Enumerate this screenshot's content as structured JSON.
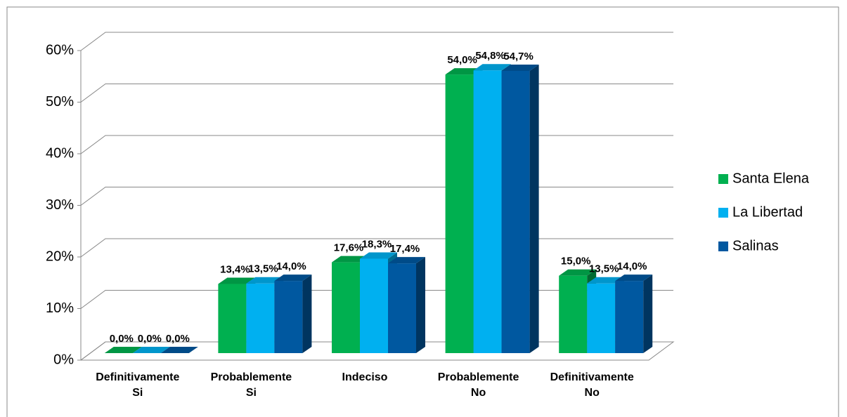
{
  "chart_data": {
    "type": "bar3d",
    "categories": [
      "Definitivamente Si",
      "Probablemente Si",
      "Indeciso",
      "Probablemente No",
      "Definitivamente No"
    ],
    "series": [
      {
        "name": "Santa Elena",
        "color": "#00b050",
        "values": [
          0,
          13.4,
          17.6,
          54.0,
          15.0
        ],
        "value_labels": [
          "0,0%",
          "13,4%",
          "17,6%",
          "54,0%",
          "15,0%"
        ]
      },
      {
        "name": "La Libertad",
        "color": "#00b0f0",
        "values": [
          0,
          13.5,
          18.3,
          54.8,
          13.5
        ],
        "value_labels": [
          "0,0%",
          "13,5%",
          "18,3%",
          "54,8%",
          "13,5%"
        ]
      },
      {
        "name": "Salinas",
        "color": "#0058a0",
        "values": [
          0,
          14.0,
          17.4,
          54.7,
          14.0
        ],
        "value_labels": [
          "0,0%",
          "14,0%",
          "17,4%",
          "54,7%",
          "14,0%"
        ]
      }
    ],
    "ylim": [
      0,
      60
    ],
    "yticks": [
      {
        "value": 0,
        "label": "0%"
      },
      {
        "value": 10,
        "label": "10%"
      },
      {
        "value": 20,
        "label": "20%"
      },
      {
        "value": 30,
        "label": "30%"
      },
      {
        "value": 40,
        "label": "40%"
      },
      {
        "value": 50,
        "label": "50%"
      },
      {
        "value": 60,
        "label": "60%"
      }
    ],
    "grid": true,
    "legend": "right"
  }
}
